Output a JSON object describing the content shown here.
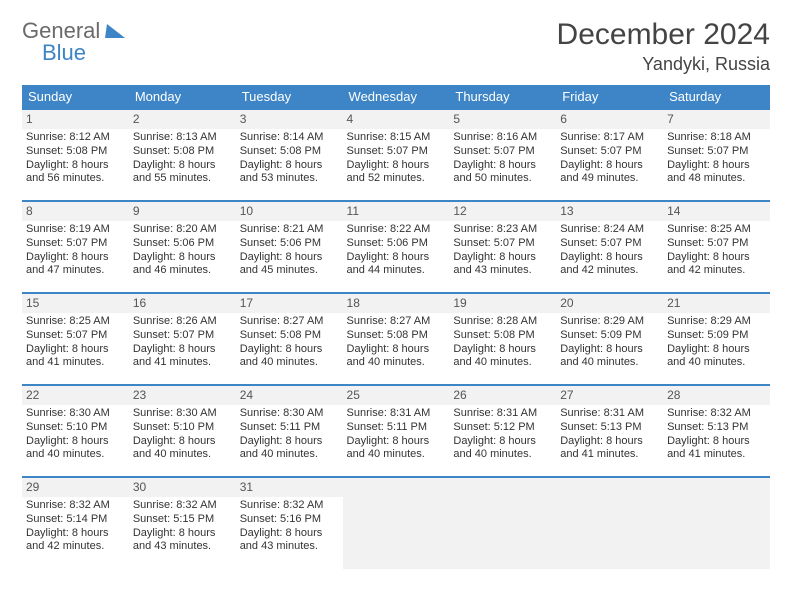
{
  "brand": {
    "word1": "General",
    "word2": "Blue"
  },
  "title": "December 2024",
  "location": "Yandyki, Russia",
  "colors": {
    "accent": "#3d85c6",
    "header_row_bg": "#f2f2f2",
    "text": "#333333",
    "background": "#ffffff"
  },
  "weekdays": [
    "Sunday",
    "Monday",
    "Tuesday",
    "Wednesday",
    "Thursday",
    "Friday",
    "Saturday"
  ],
  "weeks": [
    [
      {
        "date": "1",
        "sunrise": "Sunrise: 8:12 AM",
        "sunset": "Sunset: 5:08 PM",
        "daylight": "Daylight: 8 hours and 56 minutes."
      },
      {
        "date": "2",
        "sunrise": "Sunrise: 8:13 AM",
        "sunset": "Sunset: 5:08 PM",
        "daylight": "Daylight: 8 hours and 55 minutes."
      },
      {
        "date": "3",
        "sunrise": "Sunrise: 8:14 AM",
        "sunset": "Sunset: 5:08 PM",
        "daylight": "Daylight: 8 hours and 53 minutes."
      },
      {
        "date": "4",
        "sunrise": "Sunrise: 8:15 AM",
        "sunset": "Sunset: 5:07 PM",
        "daylight": "Daylight: 8 hours and 52 minutes."
      },
      {
        "date": "5",
        "sunrise": "Sunrise: 8:16 AM",
        "sunset": "Sunset: 5:07 PM",
        "daylight": "Daylight: 8 hours and 50 minutes."
      },
      {
        "date": "6",
        "sunrise": "Sunrise: 8:17 AM",
        "sunset": "Sunset: 5:07 PM",
        "daylight": "Daylight: 8 hours and 49 minutes."
      },
      {
        "date": "7",
        "sunrise": "Sunrise: 8:18 AM",
        "sunset": "Sunset: 5:07 PM",
        "daylight": "Daylight: 8 hours and 48 minutes."
      }
    ],
    [
      {
        "date": "8",
        "sunrise": "Sunrise: 8:19 AM",
        "sunset": "Sunset: 5:07 PM",
        "daylight": "Daylight: 8 hours and 47 minutes."
      },
      {
        "date": "9",
        "sunrise": "Sunrise: 8:20 AM",
        "sunset": "Sunset: 5:06 PM",
        "daylight": "Daylight: 8 hours and 46 minutes."
      },
      {
        "date": "10",
        "sunrise": "Sunrise: 8:21 AM",
        "sunset": "Sunset: 5:06 PM",
        "daylight": "Daylight: 8 hours and 45 minutes."
      },
      {
        "date": "11",
        "sunrise": "Sunrise: 8:22 AM",
        "sunset": "Sunset: 5:06 PM",
        "daylight": "Daylight: 8 hours and 44 minutes."
      },
      {
        "date": "12",
        "sunrise": "Sunrise: 8:23 AM",
        "sunset": "Sunset: 5:07 PM",
        "daylight": "Daylight: 8 hours and 43 minutes."
      },
      {
        "date": "13",
        "sunrise": "Sunrise: 8:24 AM",
        "sunset": "Sunset: 5:07 PM",
        "daylight": "Daylight: 8 hours and 42 minutes."
      },
      {
        "date": "14",
        "sunrise": "Sunrise: 8:25 AM",
        "sunset": "Sunset: 5:07 PM",
        "daylight": "Daylight: 8 hours and 42 minutes."
      }
    ],
    [
      {
        "date": "15",
        "sunrise": "Sunrise: 8:25 AM",
        "sunset": "Sunset: 5:07 PM",
        "daylight": "Daylight: 8 hours and 41 minutes."
      },
      {
        "date": "16",
        "sunrise": "Sunrise: 8:26 AM",
        "sunset": "Sunset: 5:07 PM",
        "daylight": "Daylight: 8 hours and 41 minutes."
      },
      {
        "date": "17",
        "sunrise": "Sunrise: 8:27 AM",
        "sunset": "Sunset: 5:08 PM",
        "daylight": "Daylight: 8 hours and 40 minutes."
      },
      {
        "date": "18",
        "sunrise": "Sunrise: 8:27 AM",
        "sunset": "Sunset: 5:08 PM",
        "daylight": "Daylight: 8 hours and 40 minutes."
      },
      {
        "date": "19",
        "sunrise": "Sunrise: 8:28 AM",
        "sunset": "Sunset: 5:08 PM",
        "daylight": "Daylight: 8 hours and 40 minutes."
      },
      {
        "date": "20",
        "sunrise": "Sunrise: 8:29 AM",
        "sunset": "Sunset: 5:09 PM",
        "daylight": "Daylight: 8 hours and 40 minutes."
      },
      {
        "date": "21",
        "sunrise": "Sunrise: 8:29 AM",
        "sunset": "Sunset: 5:09 PM",
        "daylight": "Daylight: 8 hours and 40 minutes."
      }
    ],
    [
      {
        "date": "22",
        "sunrise": "Sunrise: 8:30 AM",
        "sunset": "Sunset: 5:10 PM",
        "daylight": "Daylight: 8 hours and 40 minutes."
      },
      {
        "date": "23",
        "sunrise": "Sunrise: 8:30 AM",
        "sunset": "Sunset: 5:10 PM",
        "daylight": "Daylight: 8 hours and 40 minutes."
      },
      {
        "date": "24",
        "sunrise": "Sunrise: 8:30 AM",
        "sunset": "Sunset: 5:11 PM",
        "daylight": "Daylight: 8 hours and 40 minutes."
      },
      {
        "date": "25",
        "sunrise": "Sunrise: 8:31 AM",
        "sunset": "Sunset: 5:11 PM",
        "daylight": "Daylight: 8 hours and 40 minutes."
      },
      {
        "date": "26",
        "sunrise": "Sunrise: 8:31 AM",
        "sunset": "Sunset: 5:12 PM",
        "daylight": "Daylight: 8 hours and 40 minutes."
      },
      {
        "date": "27",
        "sunrise": "Sunrise: 8:31 AM",
        "sunset": "Sunset: 5:13 PM",
        "daylight": "Daylight: 8 hours and 41 minutes."
      },
      {
        "date": "28",
        "sunrise": "Sunrise: 8:32 AM",
        "sunset": "Sunset: 5:13 PM",
        "daylight": "Daylight: 8 hours and 41 minutes."
      }
    ],
    [
      {
        "date": "29",
        "sunrise": "Sunrise: 8:32 AM",
        "sunset": "Sunset: 5:14 PM",
        "daylight": "Daylight: 8 hours and 42 minutes."
      },
      {
        "date": "30",
        "sunrise": "Sunrise: 8:32 AM",
        "sunset": "Sunset: 5:15 PM",
        "daylight": "Daylight: 8 hours and 43 minutes."
      },
      {
        "date": "31",
        "sunrise": "Sunrise: 8:32 AM",
        "sunset": "Sunset: 5:16 PM",
        "daylight": "Daylight: 8 hours and 43 minutes."
      },
      null,
      null,
      null,
      null
    ]
  ]
}
